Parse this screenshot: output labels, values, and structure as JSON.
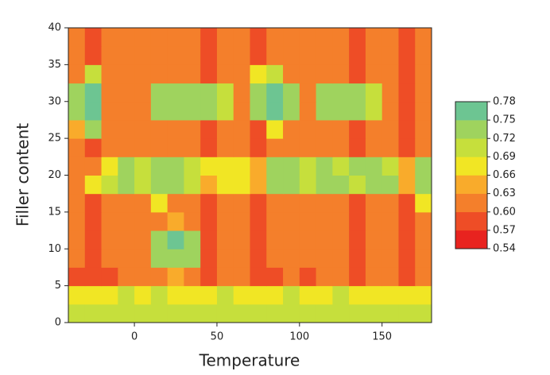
{
  "chart_data": {
    "type": "contour",
    "xlabel": "Temperature",
    "ylabel": "Filler content",
    "xlim": [
      -40,
      180
    ],
    "xticks": [
      0,
      50,
      100,
      150
    ],
    "ylim": [
      0,
      40
    ],
    "yticks": [
      0,
      5,
      10,
      15,
      20,
      25,
      30,
      35,
      40
    ],
    "x": [
      -35,
      -25,
      -15,
      -5,
      5,
      15,
      25,
      35,
      45,
      55,
      65,
      75,
      85,
      95,
      105,
      115,
      125,
      135,
      145,
      155,
      165,
      175
    ],
    "y": [
      1.25,
      3.75,
      6.25,
      8.75,
      11.25,
      13.75,
      16.25,
      18.75,
      21.25,
      23.75,
      26.25,
      28.75,
      31.25,
      33.75,
      36.25,
      38.75
    ],
    "z": [
      [
        0.7,
        0.7,
        0.71,
        0.7,
        0.71,
        0.7,
        0.71,
        0.7,
        0.7,
        0.71,
        0.7,
        0.7,
        0.71,
        0.7,
        0.7,
        0.71,
        0.7,
        0.7,
        0.71,
        0.7,
        0.7,
        0.71
      ],
      [
        0.68,
        0.67,
        0.68,
        0.69,
        0.68,
        0.69,
        0.68,
        0.68,
        0.67,
        0.69,
        0.68,
        0.67,
        0.68,
        0.69,
        0.67,
        0.68,
        0.69,
        0.67,
        0.68,
        0.68,
        0.67,
        0.68
      ],
      [
        0.59,
        0.58,
        0.59,
        0.6,
        0.6,
        0.61,
        0.63,
        0.61,
        0.58,
        0.6,
        0.6,
        0.58,
        0.59,
        0.6,
        0.59,
        0.6,
        0.6,
        0.59,
        0.6,
        0.6,
        0.57,
        0.6
      ],
      [
        0.61,
        0.58,
        0.6,
        0.61,
        0.61,
        0.72,
        0.74,
        0.72,
        0.58,
        0.61,
        0.61,
        0.58,
        0.6,
        0.61,
        0.61,
        0.61,
        0.61,
        0.59,
        0.61,
        0.61,
        0.57,
        0.61
      ],
      [
        0.61,
        0.58,
        0.6,
        0.61,
        0.61,
        0.73,
        0.75,
        0.74,
        0.58,
        0.61,
        0.61,
        0.58,
        0.6,
        0.61,
        0.61,
        0.61,
        0.61,
        0.59,
        0.61,
        0.61,
        0.57,
        0.61
      ],
      [
        0.61,
        0.58,
        0.6,
        0.61,
        0.61,
        0.61,
        0.64,
        0.6,
        0.58,
        0.61,
        0.61,
        0.58,
        0.6,
        0.61,
        0.61,
        0.61,
        0.61,
        0.59,
        0.61,
        0.61,
        0.57,
        0.61
      ],
      [
        0.61,
        0.58,
        0.6,
        0.61,
        0.61,
        0.66,
        0.61,
        0.6,
        0.58,
        0.61,
        0.61,
        0.58,
        0.6,
        0.61,
        0.61,
        0.61,
        0.61,
        0.59,
        0.61,
        0.61,
        0.57,
        0.66
      ],
      [
        0.61,
        0.66,
        0.7,
        0.72,
        0.71,
        0.74,
        0.73,
        0.7,
        0.64,
        0.67,
        0.66,
        0.64,
        0.72,
        0.73,
        0.71,
        0.72,
        0.73,
        0.7,
        0.72,
        0.73,
        0.65,
        0.72
      ],
      [
        0.61,
        0.6,
        0.67,
        0.73,
        0.7,
        0.72,
        0.74,
        0.71,
        0.66,
        0.68,
        0.67,
        0.65,
        0.73,
        0.72,
        0.7,
        0.73,
        0.71,
        0.72,
        0.73,
        0.71,
        0.64,
        0.73
      ],
      [
        0.61,
        0.58,
        0.6,
        0.61,
        0.61,
        0.61,
        0.61,
        0.6,
        0.58,
        0.61,
        0.61,
        0.58,
        0.6,
        0.61,
        0.61,
        0.61,
        0.61,
        0.59,
        0.61,
        0.61,
        0.57,
        0.61
      ],
      [
        0.65,
        0.72,
        0.6,
        0.61,
        0.61,
        0.61,
        0.61,
        0.6,
        0.58,
        0.61,
        0.61,
        0.58,
        0.66,
        0.61,
        0.61,
        0.61,
        0.61,
        0.59,
        0.61,
        0.61,
        0.57,
        0.61
      ],
      [
        0.74,
        0.76,
        0.6,
        0.61,
        0.61,
        0.73,
        0.74,
        0.73,
        0.73,
        0.7,
        0.61,
        0.73,
        0.75,
        0.72,
        0.61,
        0.73,
        0.74,
        0.72,
        0.71,
        0.61,
        0.57,
        0.61
      ],
      [
        0.73,
        0.75,
        0.6,
        0.61,
        0.61,
        0.74,
        0.72,
        0.74,
        0.72,
        0.71,
        0.61,
        0.74,
        0.76,
        0.73,
        0.61,
        0.74,
        0.73,
        0.73,
        0.7,
        0.61,
        0.57,
        0.61
      ],
      [
        0.61,
        0.7,
        0.6,
        0.61,
        0.61,
        0.61,
        0.61,
        0.6,
        0.58,
        0.61,
        0.61,
        0.66,
        0.7,
        0.61,
        0.61,
        0.61,
        0.61,
        0.59,
        0.61,
        0.61,
        0.57,
        0.61
      ],
      [
        0.61,
        0.58,
        0.6,
        0.61,
        0.61,
        0.61,
        0.61,
        0.6,
        0.58,
        0.61,
        0.61,
        0.58,
        0.6,
        0.61,
        0.61,
        0.61,
        0.61,
        0.59,
        0.61,
        0.61,
        0.57,
        0.61
      ],
      [
        0.61,
        0.58,
        0.6,
        0.61,
        0.61,
        0.61,
        0.61,
        0.6,
        0.58,
        0.61,
        0.61,
        0.58,
        0.6,
        0.61,
        0.61,
        0.61,
        0.61,
        0.59,
        0.61,
        0.61,
        0.57,
        0.61
      ]
    ],
    "colorbar_ticks": [
      0.54,
      0.57,
      {
        "value": 0.6,
        "label": "0.60"
      },
      0.63,
      0.66,
      0.69,
      0.72,
      0.75,
      0.78
    ],
    "colors": [
      "#e8231f",
      "#ee4d26",
      "#f47f2b",
      "#f9ab2b",
      "#f1e624",
      "#c6df3c",
      "#9fd35e",
      "#6dc592"
    ]
  }
}
